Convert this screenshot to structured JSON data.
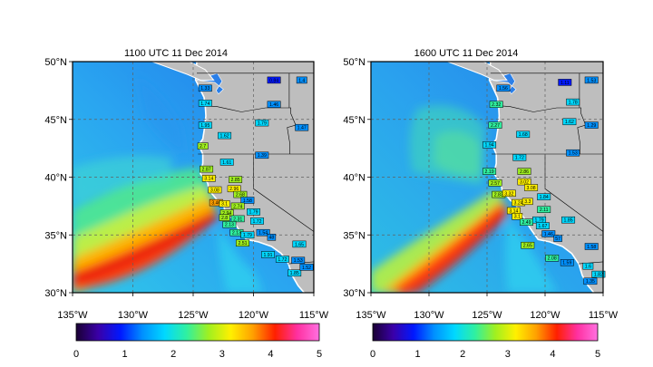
{
  "panels": [
    {
      "title": "1100 UTC 11 Dec 2014",
      "y_ticks": [
        "30°N",
        "35°N",
        "40°N",
        "45°N",
        "50°N"
      ],
      "x_ticks": [
        "135°W",
        "130°W",
        "125°W",
        "120°W",
        "115°W"
      ],
      "stations": [
        {
          "label": "0.84",
          "lon": -118.3,
          "lat": 48.4
        },
        {
          "label": "1.4",
          "lon": -116.0,
          "lat": 48.4
        },
        {
          "label": "1.33",
          "lon": -124.0,
          "lat": 47.7
        },
        {
          "label": "1.46",
          "lon": -118.3,
          "lat": 46.3
        },
        {
          "label": "1.74",
          "lon": -124.0,
          "lat": 46.4
        },
        {
          "label": "1.95",
          "lon": -124.0,
          "lat": 44.5
        },
        {
          "label": "1.79",
          "lon": -119.3,
          "lat": 44.7
        },
        {
          "label": "1.47",
          "lon": -116.0,
          "lat": 44.3
        },
        {
          "label": "1.62",
          "lon": -122.4,
          "lat": 43.6
        },
        {
          "label": "2.7",
          "lon": -124.2,
          "lat": 42.7
        },
        {
          "label": "1.39",
          "lon": -119.3,
          "lat": 41.9
        },
        {
          "label": "1.61",
          "lon": -122.2,
          "lat": 41.3
        },
        {
          "label": "2.87",
          "lon": -123.9,
          "lat": 40.7
        },
        {
          "label": "3.14",
          "lon": -123.7,
          "lat": 39.9
        },
        {
          "label": "2.85",
          "lon": -121.5,
          "lat": 39.8
        },
        {
          "label": "3.08",
          "lon": -123.2,
          "lat": 38.9
        },
        {
          "label": "2.96",
          "lon": -121.6,
          "lat": 39.0
        },
        {
          "label": "2.68",
          "lon": -121.1,
          "lat": 38.5
        },
        {
          "label": "3.46",
          "lon": -123.1,
          "lat": 37.8
        },
        {
          "label": "3.1",
          "lon": -122.4,
          "lat": 37.7
        },
        {
          "label": "1.58",
          "lon": -120.5,
          "lat": 38.0
        },
        {
          "label": "2.74",
          "lon": -121.3,
          "lat": 37.5
        },
        {
          "label": "2.94",
          "lon": -122.2,
          "lat": 36.9
        },
        {
          "label": "1.79",
          "lon": -120.0,
          "lat": 37.0
        },
        {
          "label": "2.31",
          "lon": -121.3,
          "lat": 36.4
        },
        {
          "label": "2.8",
          "lon": -122.4,
          "lat": 36.5
        },
        {
          "label": "1.72",
          "lon": -119.7,
          "lat": 36.2
        },
        {
          "label": "2.13",
          "lon": -122.0,
          "lat": 35.9
        },
        {
          "label": "2.13",
          "lon": -121.4,
          "lat": 35.2
        },
        {
          "label": "1.79",
          "lon": -120.5,
          "lat": 35.0
        },
        {
          "label": "1.54",
          "lon": -119.2,
          "lat": 35.2
        },
        {
          "label": "48",
          "lon": -118.5,
          "lat": 34.8
        },
        {
          "label": "2.51",
          "lon": -120.9,
          "lat": 34.3
        },
        {
          "label": "1.65",
          "lon": -116.2,
          "lat": 34.2
        },
        {
          "label": "1.91",
          "lon": -118.8,
          "lat": 33.3
        },
        {
          "label": "1.53",
          "lon": -116.3,
          "lat": 32.8
        },
        {
          "label": "1.72",
          "lon": -117.6,
          "lat": 32.9
        },
        {
          "label": "1.85",
          "lon": -116.6,
          "lat": 31.7
        },
        {
          "label": "1.52",
          "lon": -115.6,
          "lat": 32.2
        }
      ]
    },
    {
      "title": "1600 UTC 11 Dec 2014",
      "y_ticks": [
        "30°N",
        "35°N",
        "40°N",
        "45°N",
        "50°N"
      ],
      "x_ticks": [
        "135°W",
        "130°W",
        "125°W",
        "120°W",
        "115°W"
      ],
      "stations": [
        {
          "label": "1.56",
          "lon": -123.6,
          "lat": 47.7
        },
        {
          "label": "1.11",
          "lon": -118.3,
          "lat": 48.2
        },
        {
          "label": "1.53",
          "lon": -116.0,
          "lat": 48.4
        },
        {
          "label": "2.32",
          "lon": -124.2,
          "lat": 46.3
        },
        {
          "label": "1.78",
          "lon": -117.6,
          "lat": 46.5
        },
        {
          "label": "2.27",
          "lon": -124.3,
          "lat": 44.5
        },
        {
          "label": "1.62",
          "lon": -117.9,
          "lat": 44.8
        },
        {
          "label": "1.29",
          "lon": -116.0,
          "lat": 44.5
        },
        {
          "label": "1.68",
          "lon": -121.9,
          "lat": 43.7
        },
        {
          "label": "1.94",
          "lon": -124.8,
          "lat": 42.8
        },
        {
          "label": "1.72",
          "lon": -122.2,
          "lat": 41.7
        },
        {
          "label": "1.53",
          "lon": -117.6,
          "lat": 42.1
        },
        {
          "label": "2.19",
          "lon": -124.8,
          "lat": 40.5
        },
        {
          "label": "2.86",
          "lon": -121.8,
          "lat": 40.5
        },
        {
          "label": "2.57",
          "lon": -124.3,
          "lat": 39.5
        },
        {
          "label": "3.02",
          "lon": -121.8,
          "lat": 39.6
        },
        {
          "label": "3.08",
          "lon": -121.2,
          "lat": 39.1
        },
        {
          "label": "2.83",
          "lon": -124.0,
          "lat": 38.5
        },
        {
          "label": "3.32",
          "lon": -123.1,
          "lat": 38.6
        },
        {
          "label": "1.84",
          "lon": -120.1,
          "lat": 38.3
        },
        {
          "label": "3.24",
          "lon": -122.3,
          "lat": 37.8
        },
        {
          "label": "3.3",
          "lon": -121.5,
          "lat": 37.9
        },
        {
          "label": "3.14",
          "lon": -122.7,
          "lat": 37.1
        },
        {
          "label": "2.11",
          "lon": -120.1,
          "lat": 37.2
        },
        {
          "label": "3.1",
          "lon": -122.4,
          "lat": 36.6
        },
        {
          "label": "2.49",
          "lon": -121.6,
          "lat": 36.1
        },
        {
          "label": "1.79",
          "lon": -120.5,
          "lat": 36.3
        },
        {
          "label": "1.85",
          "lon": -118.0,
          "lat": 36.3
        },
        {
          "label": "1.67",
          "lon": -120.2,
          "lat": 35.8
        },
        {
          "label": "1.46",
          "lon": -119.7,
          "lat": 35.1
        },
        {
          "label": "57",
          "lon": -118.9,
          "lat": 34.7
        },
        {
          "label": "2.65",
          "lon": -121.5,
          "lat": 34.1
        },
        {
          "label": "1.58",
          "lon": -116.0,
          "lat": 34.0
        },
        {
          "label": "2.08",
          "lon": -119.4,
          "lat": 33.0
        },
        {
          "label": "1.59",
          "lon": -118.1,
          "lat": 32.6
        },
        {
          "label": "1.6",
          "lon": -116.3,
          "lat": 32.3
        },
        {
          "label": "1.82",
          "lon": -115.4,
          "lat": 31.6
        },
        {
          "label": "1.35",
          "lon": -116.1,
          "lat": 31.0
        }
      ]
    }
  ],
  "colorbar": {
    "min": 0,
    "max": 5,
    "labels": [
      "0",
      "1",
      "2",
      "3",
      "4",
      "5"
    ],
    "colors": [
      "#1a0033",
      "#3a00a8",
      "#0018ff",
      "#0090ff",
      "#00d8ff",
      "#30f0a0",
      "#a0f020",
      "#fff000",
      "#ffa000",
      "#ff2000",
      "#ff30a0",
      "#ff70e0"
    ]
  },
  "colors": {
    "land": "#bebebe",
    "border": "#000000",
    "grid": "#606060"
  }
}
